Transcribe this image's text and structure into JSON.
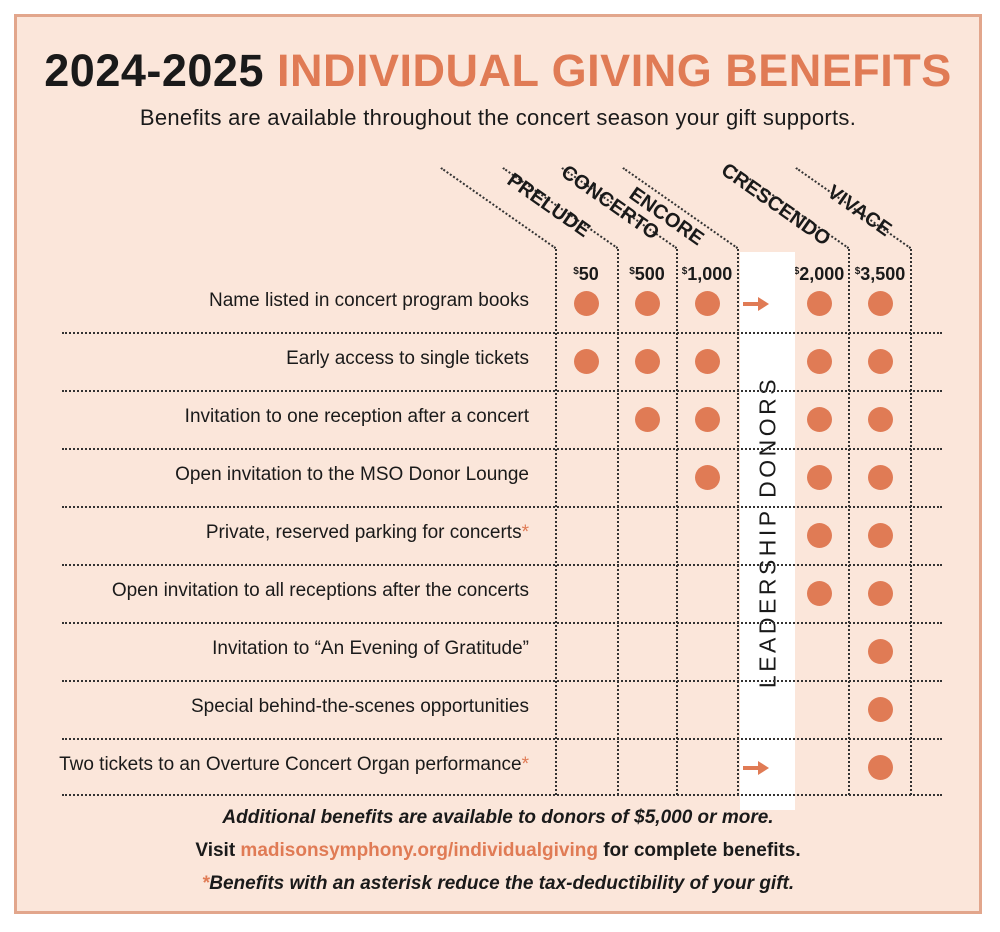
{
  "header": {
    "title_year": "2024-2025",
    "title_main": "INDIVIDUAL GIVING BENEFITS",
    "subtitle": "Benefits are available throughout the concert season your gift supports."
  },
  "tiers": [
    {
      "name": "PRELUDE",
      "currency": "$",
      "amount": "50"
    },
    {
      "name": "CONCERTO",
      "currency": "$",
      "amount": "500"
    },
    {
      "name": "ENCORE",
      "currency": "$",
      "amount": "1,000"
    },
    {
      "name": "CRESCENDO",
      "currency": "$",
      "amount": "2,000"
    },
    {
      "name": "VIVACE",
      "currency": "$",
      "amount": "3,500"
    }
  ],
  "leadership_label": "LEADERSHIP DONORS",
  "benefits": [
    {
      "label": "Name listed in concert program books",
      "asterisk": "",
      "tiers": [
        true,
        true,
        true,
        true,
        true
      ]
    },
    {
      "label": "Early access to single tickets",
      "asterisk": "",
      "tiers": [
        true,
        true,
        true,
        true,
        true
      ]
    },
    {
      "label": "Invitation to one reception after a concert",
      "asterisk": "",
      "tiers": [
        false,
        true,
        true,
        true,
        true
      ]
    },
    {
      "label": "Open invitation to the MSO Donor Lounge",
      "asterisk": "",
      "tiers": [
        false,
        false,
        true,
        true,
        true
      ]
    },
    {
      "label": "Private, reserved parking for concerts",
      "asterisk": "*",
      "tiers": [
        false,
        false,
        false,
        true,
        true
      ]
    },
    {
      "label": "Open invitation to all receptions after the concerts",
      "asterisk": "",
      "tiers": [
        false,
        false,
        false,
        true,
        true
      ]
    },
    {
      "label": "Invitation to “An Evening of Gratitude”",
      "asterisk": "",
      "tiers": [
        false,
        false,
        false,
        false,
        true
      ]
    },
    {
      "label": "Special behind-the-scenes opportunities",
      "asterisk": "",
      "tiers": [
        false,
        false,
        false,
        false,
        true
      ]
    },
    {
      "label": "Two tickets to an Overture Concert Organ performance",
      "asterisk": "*",
      "tiers": [
        false,
        false,
        false,
        false,
        true
      ]
    }
  ],
  "footer": {
    "line1": "Additional benefits are available to donors of $5,000 or more.",
    "line2_prefix": "Visit",
    "line2_link": "madisonsymphony.org/individualgiving",
    "line2_suffix": "for complete benefits.",
    "line3_asterisk": "*",
    "line3": "Benefits with an asterisk reduce the tax-deductibility of your gift."
  },
  "colors": {
    "accent": "#e07b55",
    "background": "#fbe6da",
    "border": "#e2a68c"
  },
  "icons": {
    "benefit_marker": "filled-circle",
    "leadership_arrow": "right-arrow"
  }
}
